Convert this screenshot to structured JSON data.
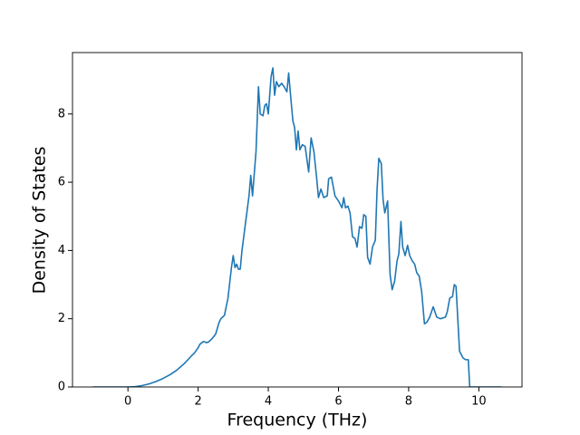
{
  "chart_data": {
    "type": "line",
    "x_label": "Frequency (THz)",
    "y_label": "Density of States",
    "xlim": [
      -1.58,
      11.23
    ],
    "ylim": [
      0,
      9.8
    ],
    "xticks": [
      0,
      2,
      4,
      6,
      8,
      10
    ],
    "yticks": [
      0,
      2,
      4,
      6,
      8
    ],
    "grid": false,
    "series": [
      {
        "color": "#1f77b4",
        "x": [
          -1,
          -0.5,
          0,
          0.2,
          0.4,
          0.6,
          0.8,
          1.0,
          1.2,
          1.4,
          1.6,
          1.8,
          1.9,
          2.0,
          2.05,
          2.15,
          2.25,
          2.3,
          2.4,
          2.5,
          2.6,
          2.65,
          2.75,
          2.85,
          2.95,
          3.0,
          3.05,
          3.1,
          3.15,
          3.2,
          3.25,
          3.35,
          3.45,
          3.5,
          3.55,
          3.65,
          3.72,
          3.77,
          3.85,
          3.9,
          3.95,
          4.0,
          4.08,
          4.13,
          4.18,
          4.23,
          4.3,
          4.38,
          4.45,
          4.53,
          4.58,
          4.63,
          4.7,
          4.75,
          4.8,
          4.85,
          4.9,
          4.97,
          5.05,
          5.15,
          5.22,
          5.3,
          5.38,
          5.43,
          5.5,
          5.58,
          5.68,
          5.72,
          5.8,
          5.9,
          6.0,
          6.05,
          6.1,
          6.15,
          6.2,
          6.27,
          6.33,
          6.4,
          6.47,
          6.53,
          6.6,
          6.67,
          6.72,
          6.78,
          6.83,
          6.9,
          6.97,
          7.05,
          7.1,
          7.15,
          7.22,
          7.27,
          7.32,
          7.4,
          7.47,
          7.53,
          7.6,
          7.67,
          7.72,
          7.78,
          7.83,
          7.9,
          7.97,
          8.03,
          8.1,
          8.17,
          8.23,
          8.3,
          8.37,
          8.45,
          8.52,
          8.6,
          8.7,
          8.8,
          8.9,
          8.97,
          9.05,
          9.1,
          9.17,
          9.25,
          9.3,
          9.35,
          9.45,
          9.55,
          9.62,
          9.7,
          9.74,
          9.8,
          10.0,
          10.65
        ],
        "values": [
          0,
          0,
          0,
          0.01,
          0.04,
          0.09,
          0.16,
          0.25,
          0.36,
          0.5,
          0.68,
          0.9,
          1.0,
          1.15,
          1.25,
          1.33,
          1.3,
          1.32,
          1.42,
          1.55,
          1.9,
          2.0,
          2.1,
          2.6,
          3.5,
          3.85,
          3.5,
          3.6,
          3.45,
          3.45,
          4.0,
          4.8,
          5.6,
          6.2,
          5.6,
          6.9,
          8.8,
          8.0,
          7.95,
          8.25,
          8.3,
          8.0,
          9.1,
          9.35,
          8.55,
          8.95,
          8.8,
          8.9,
          8.8,
          8.65,
          9.2,
          8.6,
          7.8,
          7.6,
          6.95,
          7.5,
          6.95,
          7.1,
          7.05,
          6.3,
          7.3,
          6.9,
          6.1,
          5.55,
          5.8,
          5.55,
          5.6,
          6.1,
          6.15,
          5.6,
          5.45,
          5.35,
          5.25,
          5.55,
          5.25,
          5.3,
          5.1,
          4.4,
          4.35,
          4.1,
          4.7,
          4.65,
          5.05,
          5.0,
          3.8,
          3.6,
          4.1,
          4.3,
          5.8,
          6.7,
          6.55,
          5.5,
          5.1,
          5.45,
          3.3,
          2.85,
          3.1,
          3.7,
          3.9,
          4.85,
          4.1,
          3.85,
          4.15,
          3.85,
          3.7,
          3.6,
          3.35,
          3.25,
          2.8,
          1.85,
          1.9,
          2.05,
          2.35,
          2.05,
          2.0,
          2.02,
          2.05,
          2.2,
          2.6,
          2.65,
          3.0,
          2.95,
          1.05,
          0.85,
          0.8,
          0.8,
          0,
          0,
          0,
          0
        ]
      }
    ]
  }
}
